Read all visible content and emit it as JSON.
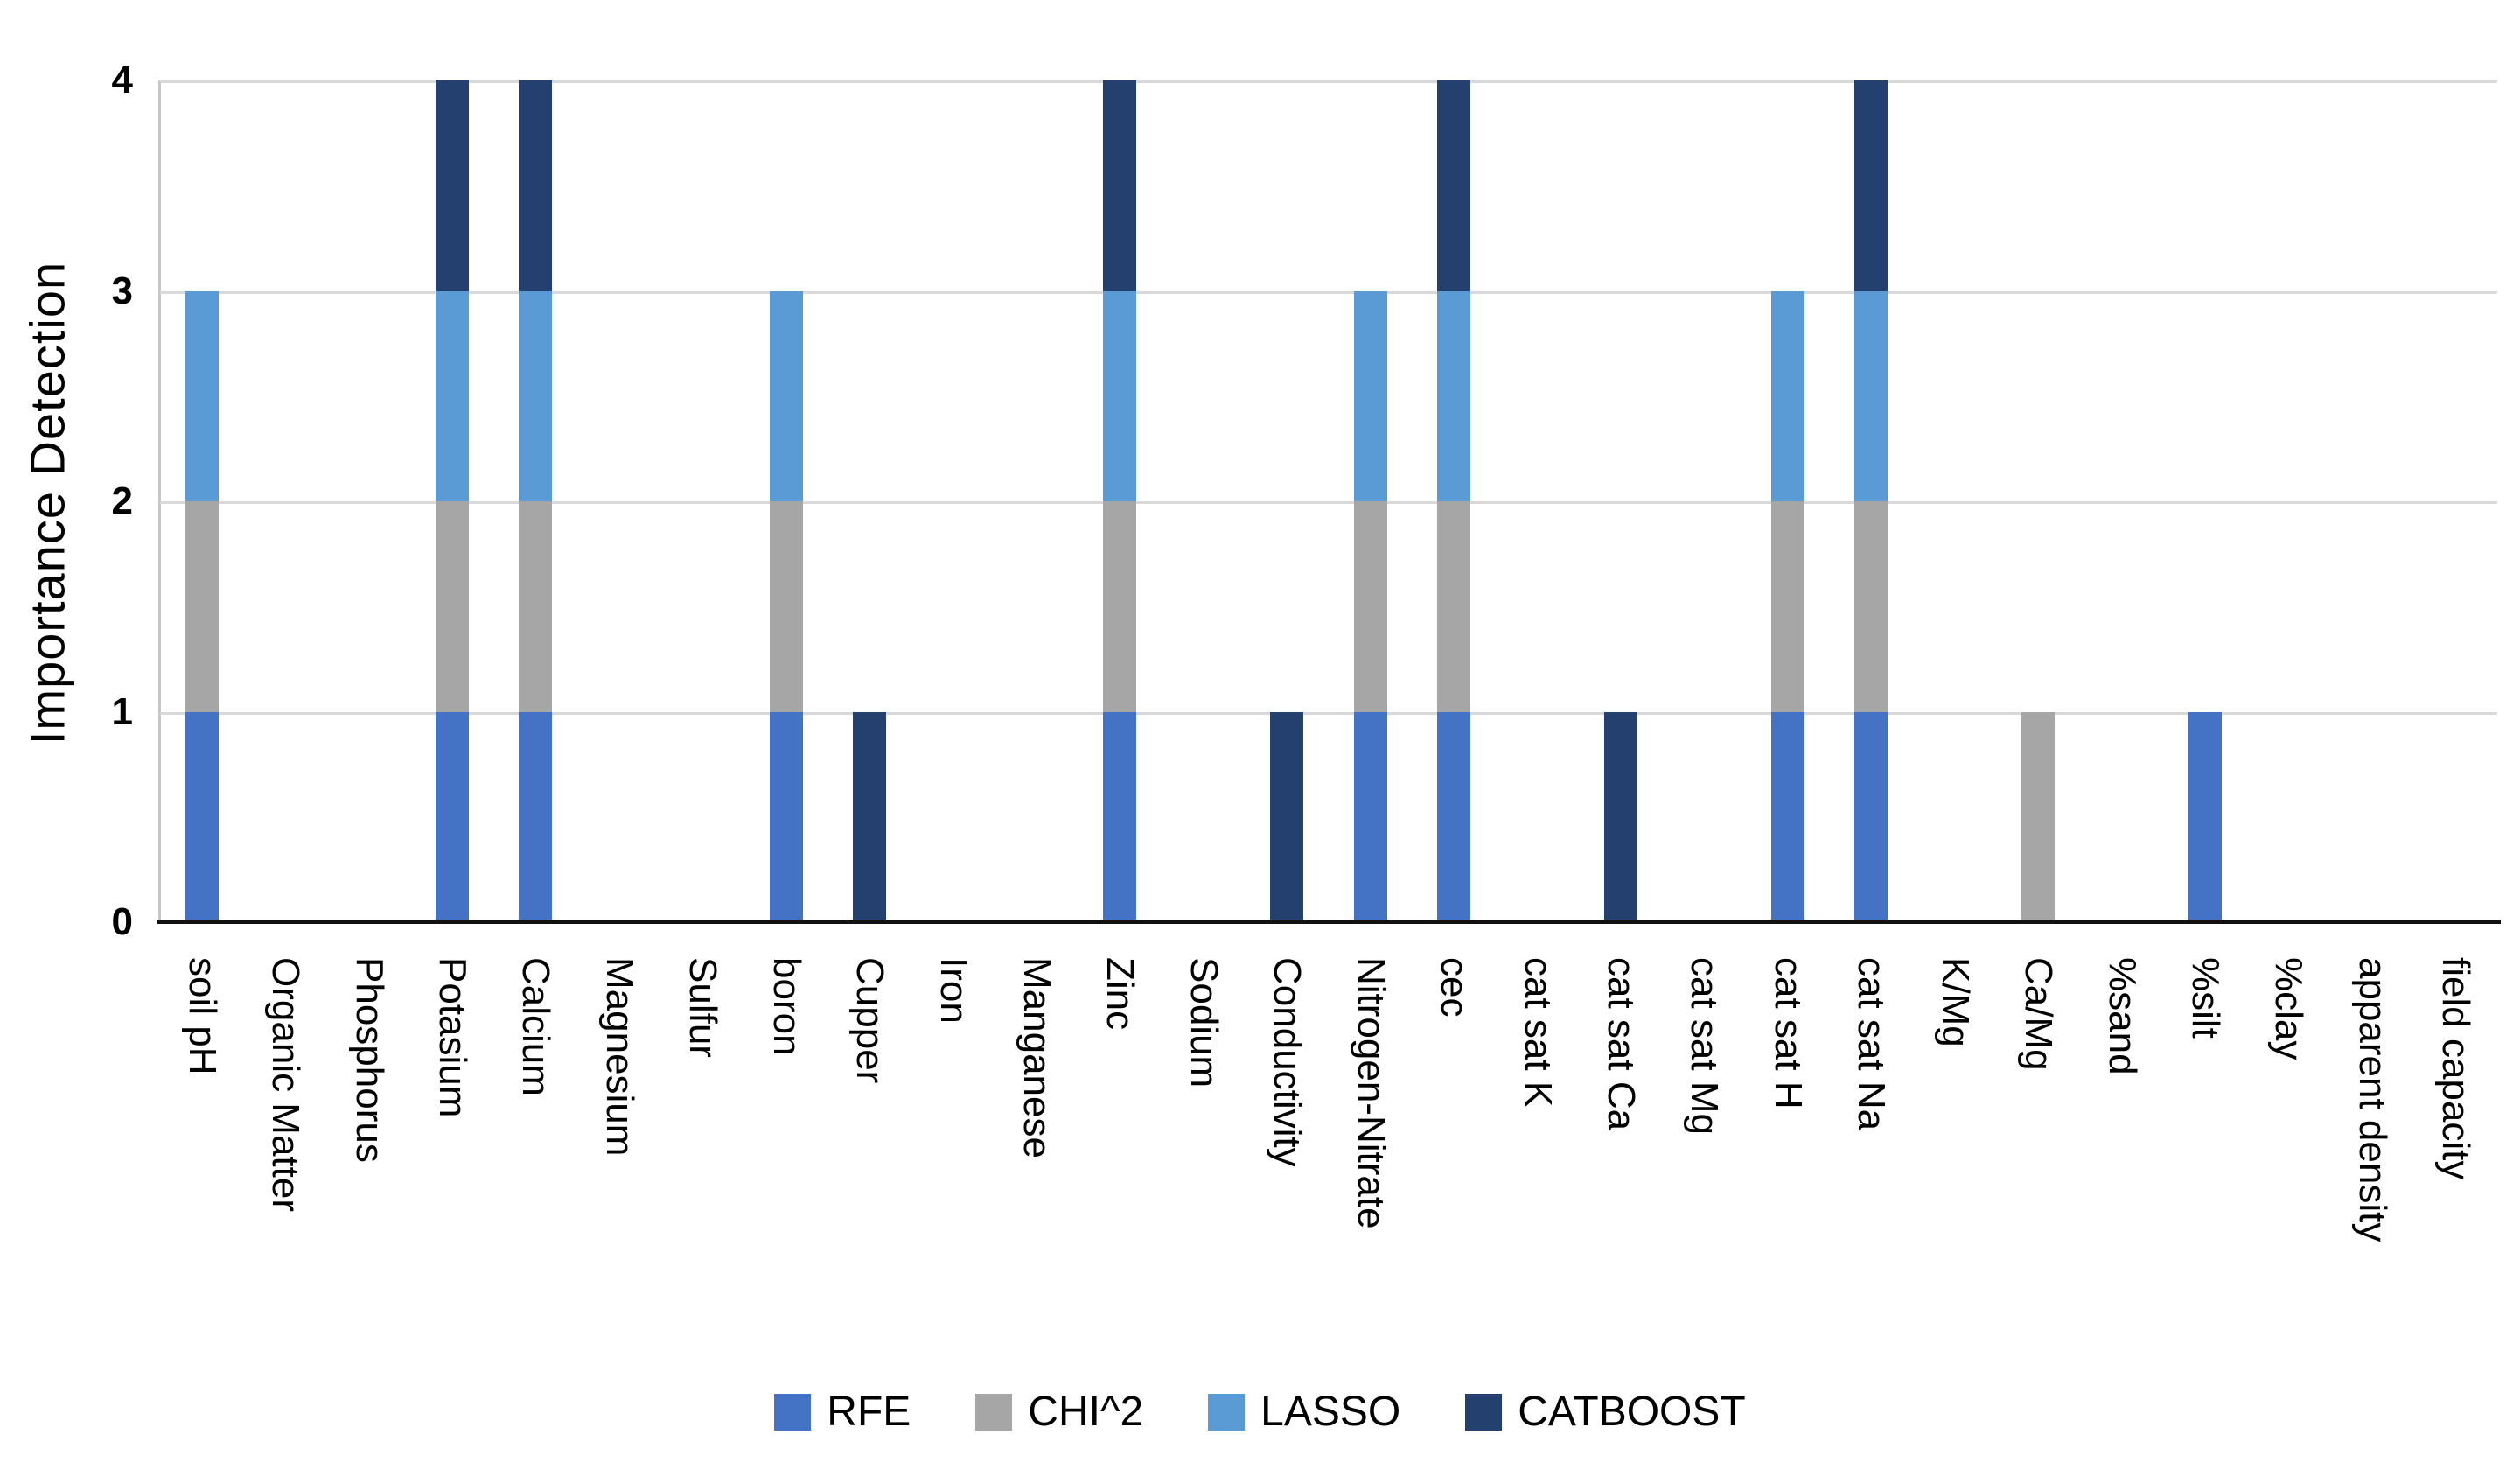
{
  "chart_data": {
    "type": "bar",
    "stacked": true,
    "title": "",
    "xlabel": "",
    "ylabel": "Importance Detection",
    "ylim": [
      0,
      4
    ],
    "yticks": [
      0,
      1,
      2,
      3,
      4
    ],
    "grid": "horizontal",
    "legend_position": "bottom-center",
    "categories": [
      "soil pH",
      "Organic Matter",
      "Phosphorus",
      "Potasium",
      "Calcium",
      "Magnesium",
      "Sulfur",
      "boron",
      "Cupper",
      "Iron",
      "Manganese",
      "Zinc",
      "Sodium",
      "Conductivity",
      "Nitrogen-Nitrate",
      "cec",
      "cat sat K",
      "cat sat Ca",
      "cat sat Mg",
      "cat sat H",
      "cat sat Na",
      "K/Mg",
      "Ca/Mg",
      "%sand",
      "%silt",
      "%clay",
      "apparent density",
      "field capacity"
    ],
    "series": [
      {
        "name": "RFE",
        "color": "#4472C4",
        "values": [
          1,
          0,
          0,
          1,
          1,
          0,
          0,
          1,
          0,
          0,
          0,
          1,
          0,
          0,
          1,
          1,
          0,
          0,
          0,
          1,
          1,
          0,
          0,
          0,
          1,
          0,
          0,
          0
        ]
      },
      {
        "name": "CHI^2",
        "color": "#A6A6A6",
        "values": [
          1,
          0,
          0,
          1,
          1,
          0,
          0,
          1,
          0,
          0,
          0,
          1,
          0,
          0,
          1,
          1,
          0,
          0,
          0,
          1,
          1,
          0,
          1,
          0,
          0,
          0,
          0,
          0
        ]
      },
      {
        "name": "LASSO",
        "color": "#5B9BD5",
        "values": [
          1,
          0,
          0,
          1,
          1,
          0,
          0,
          1,
          0,
          0,
          0,
          1,
          0,
          0,
          1,
          1,
          0,
          0,
          0,
          1,
          1,
          0,
          0,
          0,
          0,
          0,
          0,
          0
        ]
      },
      {
        "name": "CATBOOST",
        "color": "#24406E",
        "values": [
          0,
          0,
          0,
          1,
          1,
          0,
          0,
          0,
          1,
          0,
          0,
          1,
          0,
          1,
          0,
          1,
          0,
          1,
          0,
          0,
          1,
          0,
          0,
          0,
          0,
          0,
          0,
          0
        ]
      }
    ],
    "category_totals": [
      3,
      0,
      0,
      4,
      4,
      0,
      0,
      3,
      1,
      0,
      0,
      4,
      0,
      1,
      3,
      4,
      0,
      1,
      0,
      3,
      4,
      0,
      1,
      0,
      1,
      0,
      0,
      0
    ]
  },
  "colors": {
    "background": "#FFFFFF",
    "gridline": "#D9D9D9",
    "y_axis_line": "#C6C6C6",
    "x_axis_line": "#111111",
    "text": "#000000"
  }
}
